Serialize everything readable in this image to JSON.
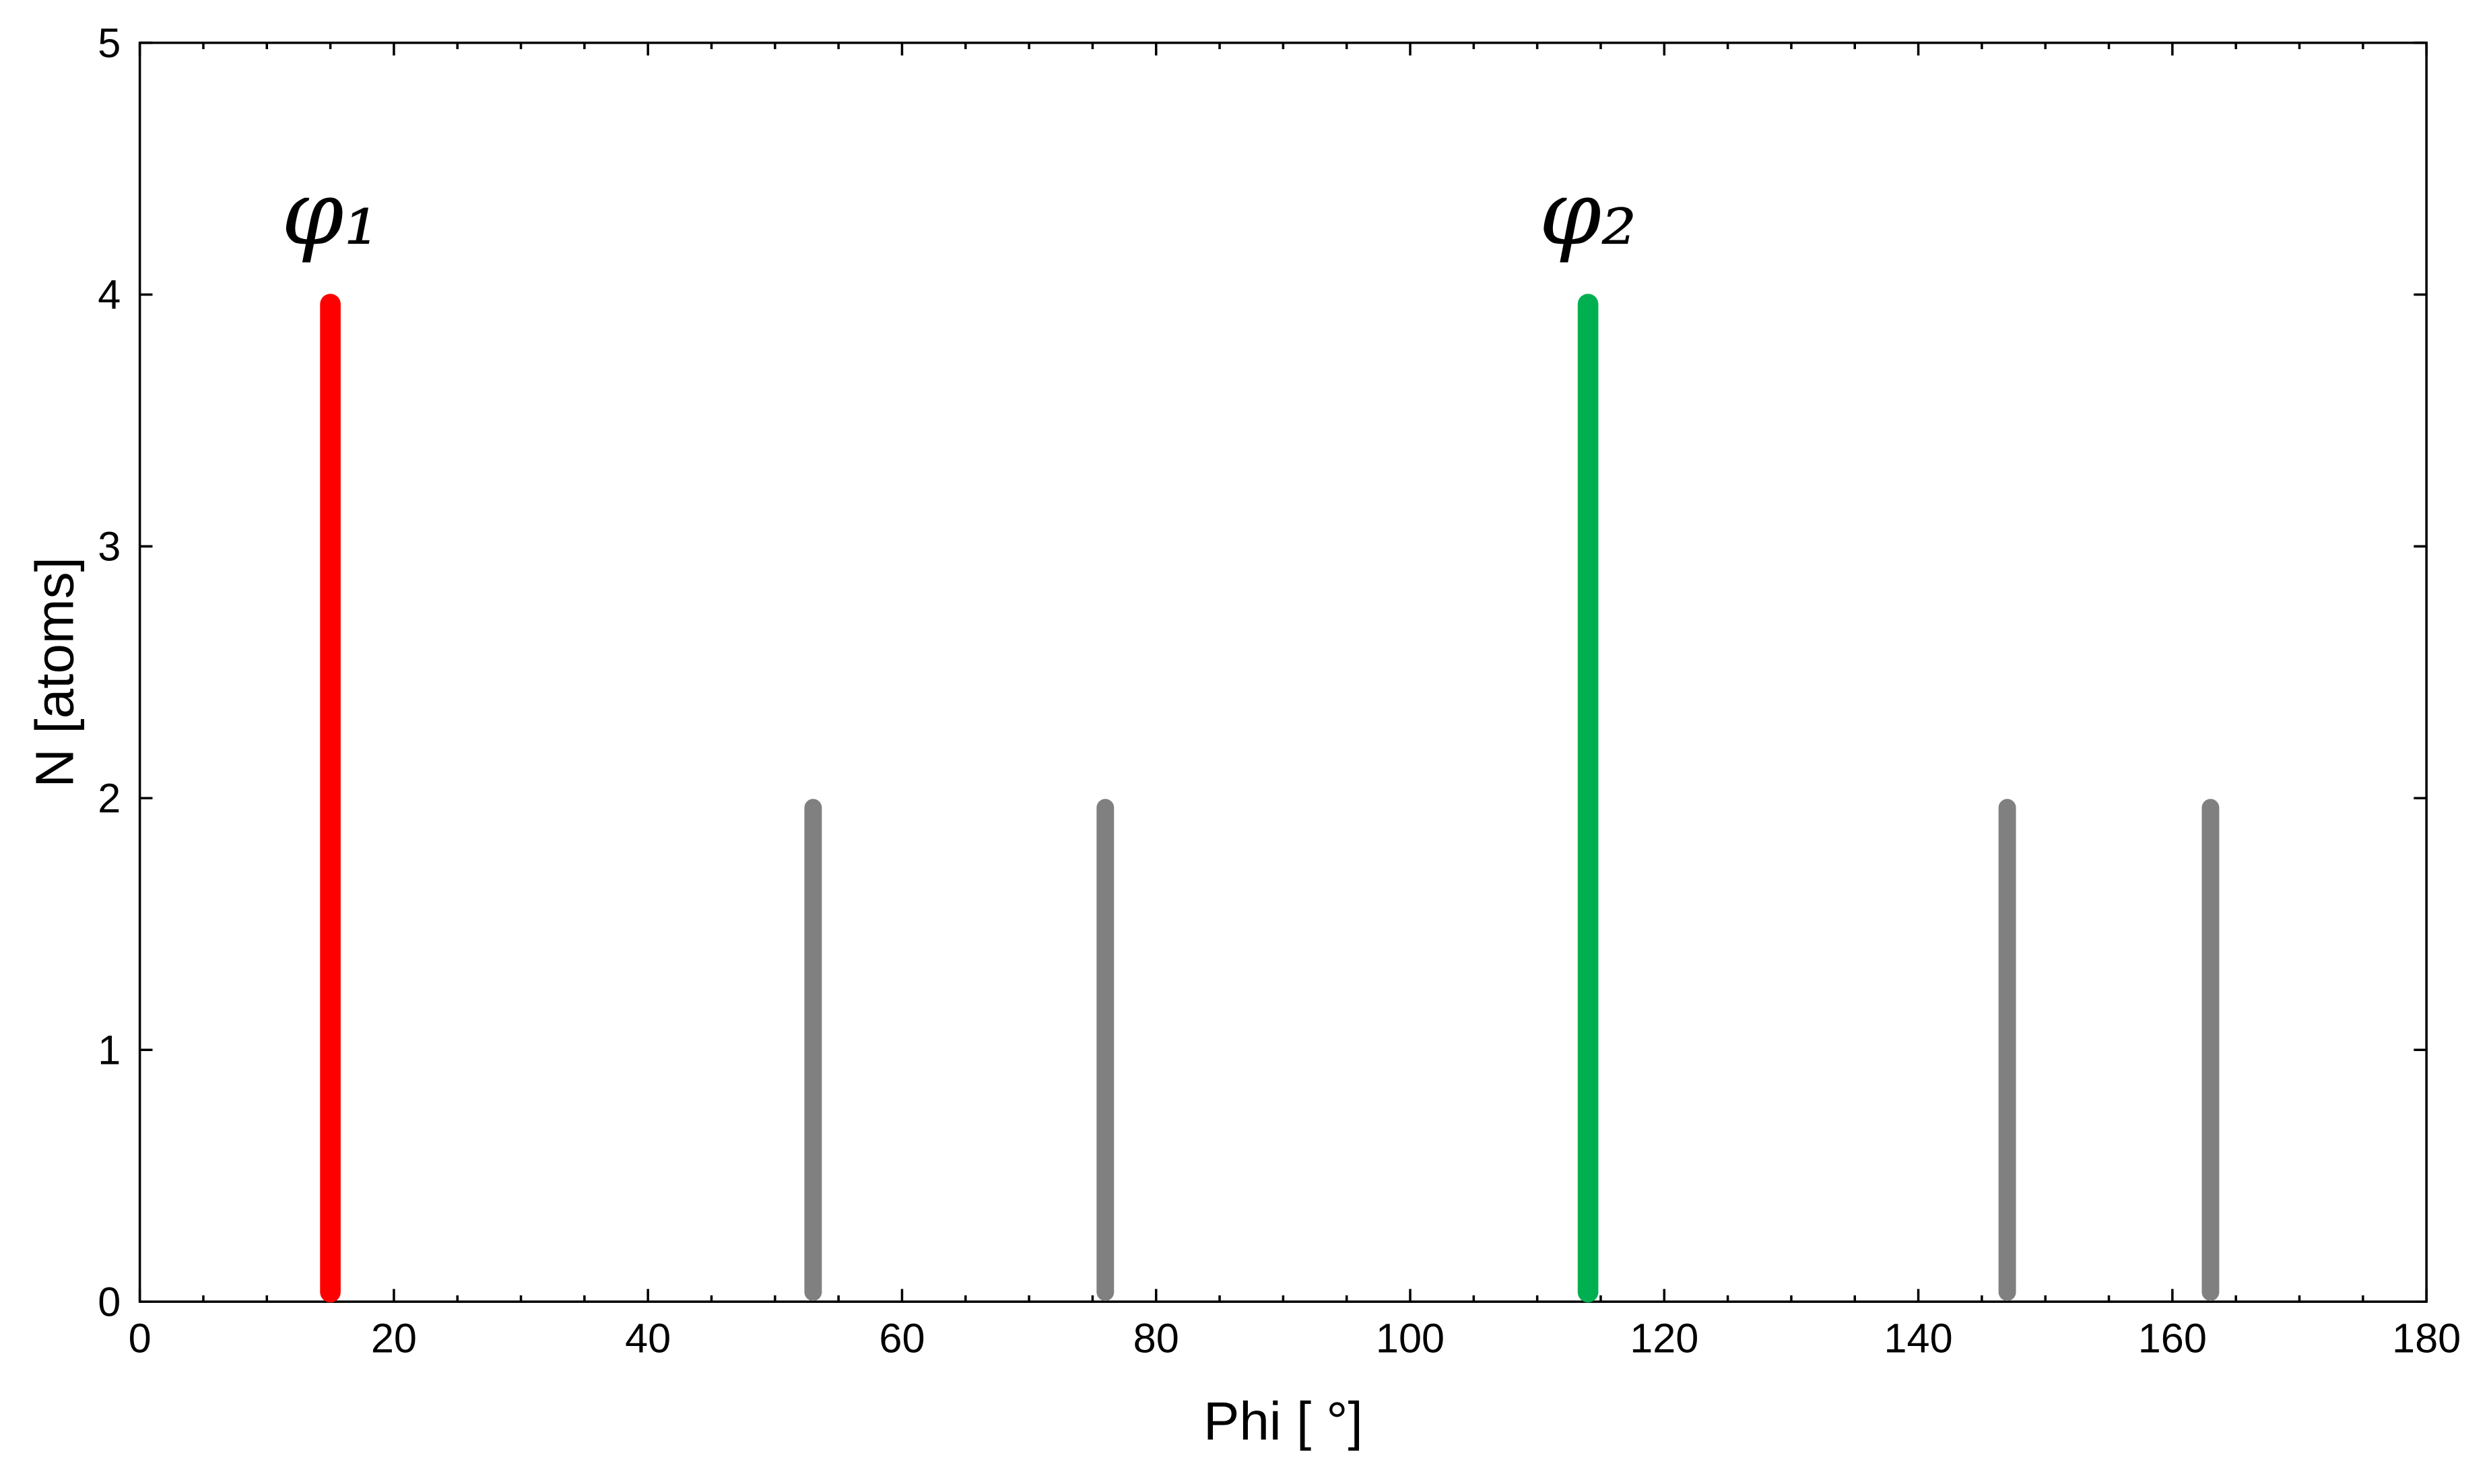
{
  "chart_data": {
    "type": "stem",
    "x": [
      15,
      53,
      76,
      114,
      147,
      163
    ],
    "values": [
      4,
      2,
      2,
      4,
      2,
      2
    ],
    "colors": [
      "#ff0000",
      "#808080",
      "#808080",
      "#00b050",
      "#808080",
      "#808080"
    ],
    "point_labels": [
      "φ₁",
      null,
      null,
      "φ₂",
      null,
      null
    ],
    "xlabel": "Phi [ °]",
    "ylabel": "N [atoms]",
    "xlim": [
      0,
      180
    ],
    "xticks": [
      0,
      20,
      40,
      60,
      80,
      100,
      120,
      140,
      160,
      180
    ],
    "ylim": [
      0,
      5
    ],
    "yticks": [
      0,
      1,
      2,
      3,
      4,
      5
    ]
  }
}
